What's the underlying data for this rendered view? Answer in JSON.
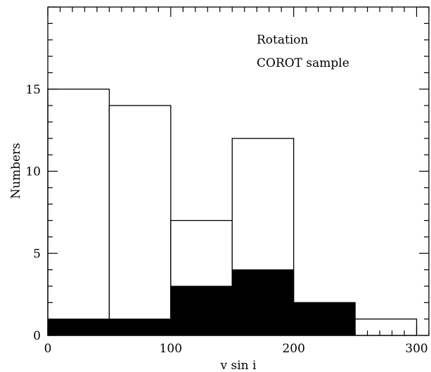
{
  "chart_data": {
    "type": "bar",
    "subtype": "histogram",
    "xlabel": "v sin i",
    "ylabel": "Numbers",
    "xlim": [
      0,
      310
    ],
    "ylim": [
      0,
      20
    ],
    "x_ticks": [
      "0",
      "100",
      "200",
      "300"
    ],
    "y_ticks": [
      "0",
      "5",
      "10",
      "15"
    ],
    "annotations": [
      "Rotation",
      "COROT sample"
    ],
    "bin_edges": [
      0,
      50,
      100,
      150,
      200,
      250,
      300
    ],
    "series": [
      {
        "style": "outline",
        "color": "#000000",
        "values": [
          15,
          14,
          7,
          12,
          2,
          1
        ]
      },
      {
        "style": "filled",
        "color": "#000000",
        "values": [
          1,
          1,
          3,
          4,
          2,
          0
        ]
      }
    ],
    "grid": false
  }
}
